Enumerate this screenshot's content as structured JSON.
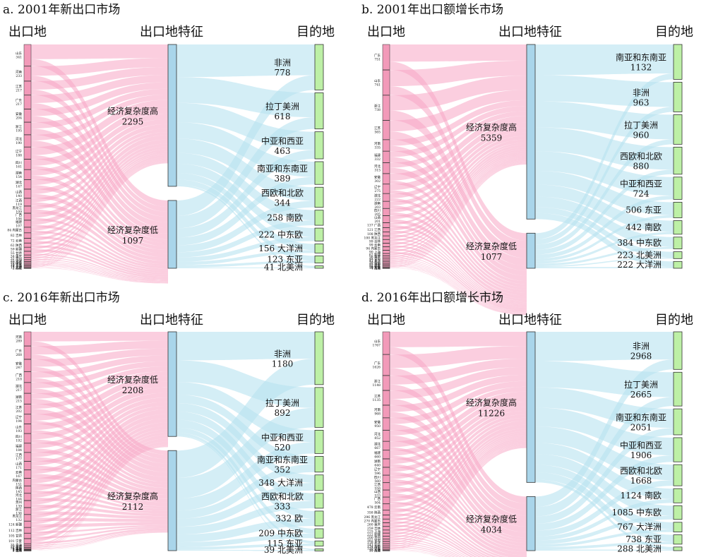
{
  "headers": {
    "origin": "出口地",
    "feature": "出口地特征",
    "dest": "目的地"
  },
  "colors": {
    "origin_fill": "#f29ab9",
    "origin_flow": "#f7a6c4",
    "feature_fill": "#a9d5ea",
    "feature_flow": "#b7e2f0",
    "dest_fill": "#bdf0a6",
    "stroke": "#333333"
  },
  "panels": [
    {
      "title": "a. 2001年新出口市场",
      "origins": [
        {
          "name": "山东",
          "value": "341"
        },
        {
          "name": "河南",
          "value": "233"
        },
        {
          "name": "江苏",
          "value": "217"
        },
        {
          "name": "广东",
          "value": "217"
        },
        {
          "name": "安徽",
          "value": "204"
        },
        {
          "name": "浙江",
          "value": "195"
        },
        {
          "name": "河北",
          "value": "190"
        },
        {
          "name": "辽宁",
          "value": "188"
        },
        {
          "name": "四川",
          "value": "161"
        },
        {
          "name": "湖南",
          "value": "154"
        },
        {
          "name": "湖北",
          "value": "147"
        },
        {
          "name": "山西",
          "value": "140"
        },
        {
          "name": "江西",
          "value": "119"
        },
        {
          "name": "黑龙江",
          "value": "109"
        },
        {
          "name": "广西",
          "value": "106"
        },
        {
          "name": "福建",
          "value": "107"
        },
        {
          "name": "内蒙古",
          "value": "84"
        },
        {
          "name": "吉林",
          "value": "82"
        },
        {
          "name": "云南",
          "value": "72"
        },
        {
          "name": "陕西",
          "value": "62"
        },
        {
          "name": "新疆",
          "value": "59"
        },
        {
          "name": "甘肃",
          "value": "55"
        },
        {
          "name": "重庆",
          "value": "34"
        },
        {
          "name": "贵州",
          "value": "31"
        },
        {
          "name": "天津",
          "value": "25"
        },
        {
          "name": "海南",
          "value": "20"
        },
        {
          "name": "宁夏",
          "value": "18"
        },
        {
          "name": "青海",
          "value": "16"
        },
        {
          "name": "上海",
          "value": "14"
        },
        {
          "name": "北京",
          "value": "12"
        },
        {
          "name": "西藏",
          "value": "2"
        }
      ],
      "features": [
        {
          "name": "经济复杂度高",
          "value": "2295"
        },
        {
          "name": "经济复杂度低",
          "value": "1097"
        }
      ],
      "dests": [
        {
          "name": "非洲",
          "value": "778",
          "layout": "stack"
        },
        {
          "name": "拉丁美洲",
          "value": "618",
          "layout": "stack"
        },
        {
          "name": "中亚和西亚",
          "value": "463",
          "layout": "stack"
        },
        {
          "name": "南亚和东南亚",
          "value": "389",
          "layout": "stack"
        },
        {
          "name": "西欧和北欧",
          "value": "344",
          "layout": "stack"
        },
        {
          "name": "南欧",
          "value": "258",
          "layout": "inline"
        },
        {
          "name": "中东欧",
          "value": "222",
          "layout": "inline"
        },
        {
          "name": "大洋洲",
          "value": "156",
          "layout": "inline"
        },
        {
          "name": "东亚",
          "value": "123",
          "layout": "inline"
        },
        {
          "name": "北美洲",
          "value": "41",
          "layout": "inline"
        }
      ]
    },
    {
      "title": "b. 2001年出口额增长市场",
      "origins": [
        {
          "name": "广东",
          "value": "751"
        },
        {
          "name": "山东",
          "value": "741"
        },
        {
          "name": "浙江",
          "value": "738"
        },
        {
          "name": "江苏",
          "value": "565"
        },
        {
          "name": "河南",
          "value": "335"
        },
        {
          "name": "福建",
          "value": "332"
        },
        {
          "name": "河北",
          "value": "315"
        },
        {
          "name": "安徽",
          "value": "302"
        },
        {
          "name": "辽宁",
          "value": "275"
        },
        {
          "name": "湖北",
          "value": "222"
        },
        {
          "name": "湖南",
          "value": "203"
        },
        {
          "name": "四川",
          "value": "205"
        },
        {
          "name": "山西",
          "value": "201"
        },
        {
          "name": "广西",
          "value": "137"
        },
        {
          "name": "江西",
          "value": "121"
        },
        {
          "name": "陕西",
          "value": "108"
        },
        {
          "name": "黑龙江",
          "value": "100"
        },
        {
          "name": "吉林",
          "value": "99"
        },
        {
          "name": "云南",
          "value": "99"
        },
        {
          "name": "内蒙古",
          "value": "94"
        },
        {
          "name": "上海",
          "value": "90"
        },
        {
          "name": "新疆",
          "value": "62"
        },
        {
          "name": "重庆",
          "value": "56"
        },
        {
          "name": "甘肃",
          "value": "48"
        },
        {
          "name": "天津",
          "value": "41"
        },
        {
          "name": "贵州",
          "value": "39"
        },
        {
          "name": "海南",
          "value": "35"
        },
        {
          "name": "北京",
          "value": "32"
        },
        {
          "name": "宁夏",
          "value": "30"
        },
        {
          "name": "青海",
          "value": "10"
        },
        {
          "name": "西藏",
          "value": "4"
        }
      ],
      "features": [
        {
          "name": "经济复杂度高",
          "value": "5359"
        },
        {
          "name": "经济复杂度低",
          "value": "1077"
        }
      ],
      "dests": [
        {
          "name": "南亚和东南亚",
          "value": "1132",
          "layout": "stack"
        },
        {
          "name": "非洲",
          "value": "963",
          "layout": "stack"
        },
        {
          "name": "拉丁美洲",
          "value": "960",
          "layout": "stack"
        },
        {
          "name": "西欧和北欧",
          "value": "880",
          "layout": "stack"
        },
        {
          "name": "中亚和西亚",
          "value": "724",
          "layout": "stack"
        },
        {
          "name": "东亚",
          "value": "506",
          "layout": "inline"
        },
        {
          "name": "南欧",
          "value": "442",
          "layout": "inline"
        },
        {
          "name": "中东欧",
          "value": "384",
          "layout": "inline"
        },
        {
          "name": "北美洲",
          "value": "223",
          "layout": "inline"
        },
        {
          "name": "大洋洲",
          "value": "222",
          "layout": "inline"
        }
      ]
    },
    {
      "title": "c. 2016年新出口市场",
      "origins": [
        {
          "name": "河南",
          "value": "289"
        },
        {
          "name": "广东",
          "value": "268"
        },
        {
          "name": "安徽",
          "value": "247"
        },
        {
          "name": "广西",
          "value": "218"
        },
        {
          "name": "湖北",
          "value": "217"
        },
        {
          "name": "湖南",
          "value": "215"
        },
        {
          "name": "江苏",
          "value": "202"
        },
        {
          "name": "辽宁",
          "value": "194"
        },
        {
          "name": "山东",
          "value": "193"
        },
        {
          "name": "四川",
          "value": "192"
        },
        {
          "name": "福建",
          "value": "184"
        },
        {
          "name": "江西",
          "value": "177"
        },
        {
          "name": "山西",
          "value": "171"
        },
        {
          "name": "云南",
          "value": "167"
        },
        {
          "name": "内蒙古",
          "value": "151"
        },
        {
          "name": "陕西",
          "value": "145"
        },
        {
          "name": "河北",
          "value": "144"
        },
        {
          "name": "贵州",
          "value": "139"
        },
        {
          "name": "浙江",
          "value": "136"
        },
        {
          "name": "黑龙江",
          "value": "132"
        },
        {
          "name": "新疆",
          "value": "124"
        },
        {
          "name": "吉林",
          "value": "112"
        },
        {
          "name": "甘肃",
          "value": "105"
        },
        {
          "name": "宁夏",
          "value": "101"
        },
        {
          "name": "青海",
          "value": "35"
        },
        {
          "name": "海南",
          "value": "29"
        },
        {
          "name": "重庆",
          "value": "24"
        },
        {
          "name": "西藏",
          "value": "9"
        },
        {
          "name": "天津",
          "value": "3"
        },
        {
          "name": "北京",
          "value": "2"
        },
        {
          "name": "上海",
          "value": "1"
        }
      ],
      "features": [
        {
          "name": "经济复杂度低",
          "value": "2208"
        },
        {
          "name": "经济复杂度高",
          "value": "2112"
        }
      ],
      "dests": [
        {
          "name": "非洲",
          "value": "1180",
          "layout": "stack"
        },
        {
          "name": "拉丁美洲",
          "value": "892",
          "layout": "stack"
        },
        {
          "name": "中亚和西亚",
          "value": "520",
          "layout": "stack"
        },
        {
          "name": "南亚和东南亚",
          "value": "352",
          "layout": "stack"
        },
        {
          "name": "大洋洲",
          "value": "348",
          "layout": "inline"
        },
        {
          "name": "西欧和北欧",
          "value": "333",
          "layout": "stack"
        },
        {
          "name": "欧",
          "value": "332",
          "layout": "inline"
        },
        {
          "name": "中东欧",
          "value": "209",
          "layout": "inline"
        },
        {
          "name": "东亚",
          "value": "115",
          "layout": "inline"
        },
        {
          "name": "北美洲",
          "value": "39",
          "layout": "inline"
        }
      ]
    },
    {
      "title": "d. 2016年出口额增长市场",
      "origins": [
        {
          "name": "山东",
          "value": "1767"
        },
        {
          "name": "广东",
          "value": "1626"
        },
        {
          "name": "浙江",
          "value": "1148"
        },
        {
          "name": "江苏",
          "value": "1135"
        },
        {
          "name": "河南",
          "value": "968"
        },
        {
          "name": "安徽",
          "value": "950"
        },
        {
          "name": "河北",
          "value": "852"
        },
        {
          "name": "湖北",
          "value": "667"
        },
        {
          "name": "福建",
          "value": "660"
        },
        {
          "name": "湖南",
          "value": "640"
        },
        {
          "name": "辽宁",
          "value": "596"
        },
        {
          "name": "四川",
          "value": "560"
        },
        {
          "name": "江西",
          "value": "558"
        },
        {
          "name": "山西",
          "value": "533"
        },
        {
          "name": "广西",
          "value": "504"
        },
        {
          "name": "云南",
          "value": "478"
        },
        {
          "name": "陕西",
          "value": "358"
        },
        {
          "name": "黑龙江",
          "value": "296"
        },
        {
          "name": "内蒙古",
          "value": "270"
        },
        {
          "name": "重庆",
          "value": "260"
        },
        {
          "name": "吉林",
          "value": "259"
        },
        {
          "name": "上海",
          "value": "225"
        },
        {
          "name": "新疆",
          "value": "222"
        },
        {
          "name": "贵州",
          "value": "200"
        },
        {
          "name": "甘肃",
          "value": "162"
        },
        {
          "name": "天津",
          "value": "158"
        },
        {
          "name": "北京",
          "value": "143"
        },
        {
          "name": "海南",
          "value": "124"
        },
        {
          "name": "宁夏",
          "value": "110"
        },
        {
          "name": "青海",
          "value": "55"
        },
        {
          "name": "西藏",
          "value": "10"
        }
      ],
      "features": [
        {
          "name": "经济复杂度高",
          "value": "11226"
        },
        {
          "name": "经济复杂度低",
          "value": "4034"
        }
      ],
      "dests": [
        {
          "name": "非洲",
          "value": "2968",
          "layout": "stack"
        },
        {
          "name": "拉丁美洲",
          "value": "2665",
          "layout": "stack"
        },
        {
          "name": "南亚和东南亚",
          "value": "2051",
          "layout": "stack"
        },
        {
          "name": "中亚和西亚",
          "value": "1906",
          "layout": "stack"
        },
        {
          "name": "西欧和北欧",
          "value": "1668",
          "layout": "stack"
        },
        {
          "name": "南欧",
          "value": "1124",
          "layout": "inline"
        },
        {
          "name": "中东欧",
          "value": "1085",
          "layout": "inline"
        },
        {
          "name": "大洋洲",
          "value": "767",
          "layout": "inline"
        },
        {
          "name": "东亚",
          "value": "738",
          "layout": "inline"
        },
        {
          "name": "北美洲",
          "value": "288",
          "layout": "inline"
        }
      ]
    }
  ]
}
